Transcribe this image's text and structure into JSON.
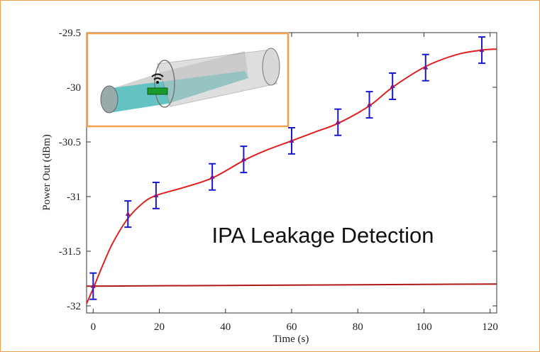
{
  "chart_data": {
    "type": "line",
    "xlabel": "Time (s)",
    "ylabel": "Power Out (dBm)",
    "annotation": "IPA Leakage Detection",
    "xlim": [
      -2,
      122
    ],
    "xticks": [
      0,
      20,
      40,
      60,
      80,
      100,
      120
    ],
    "ylim": [
      -32.065,
      -29.5
    ],
    "yticks": [
      -29.5,
      -30,
      -30.5,
      -31,
      -31.5,
      -32
    ],
    "series": [
      {
        "color": "#e02020",
        "x": [
          -2,
          0,
          3,
          6,
          10.5,
          15,
          19,
          27,
          36,
          45.5,
          52,
          60,
          67,
          74,
          83.5,
          90.5,
          100.5,
          110,
          117.5,
          122
        ],
        "values": [
          -31.98,
          -31.84,
          -31.62,
          -31.42,
          -31.2,
          -31.06,
          -30.99,
          -30.92,
          -30.83,
          -30.67,
          -30.58,
          -30.49,
          -30.41,
          -30.33,
          -30.17,
          -30.0,
          -29.81,
          -29.7,
          -29.66,
          -29.65
        ]
      },
      {
        "color": "#b01818",
        "x": [
          -2,
          122
        ],
        "values": [
          -31.82,
          -31.8
        ]
      },
      {
        "color": "#1a1acc",
        "x": [
          0,
          10.5,
          19,
          36,
          45.5,
          60,
          74,
          83.5,
          90.5,
          100.5,
          117.5
        ],
        "values": [
          -31.82,
          -31.16,
          -30.99,
          -30.82,
          -30.66,
          -30.49,
          -30.32,
          -30.16,
          -29.99,
          -29.82,
          -29.66
        ],
        "errors": [
          0.12,
          0.12,
          0.12,
          0.12,
          0.12,
          0.12,
          0.12,
          0.12,
          0.12,
          0.12,
          0.12
        ]
      }
    ]
  }
}
